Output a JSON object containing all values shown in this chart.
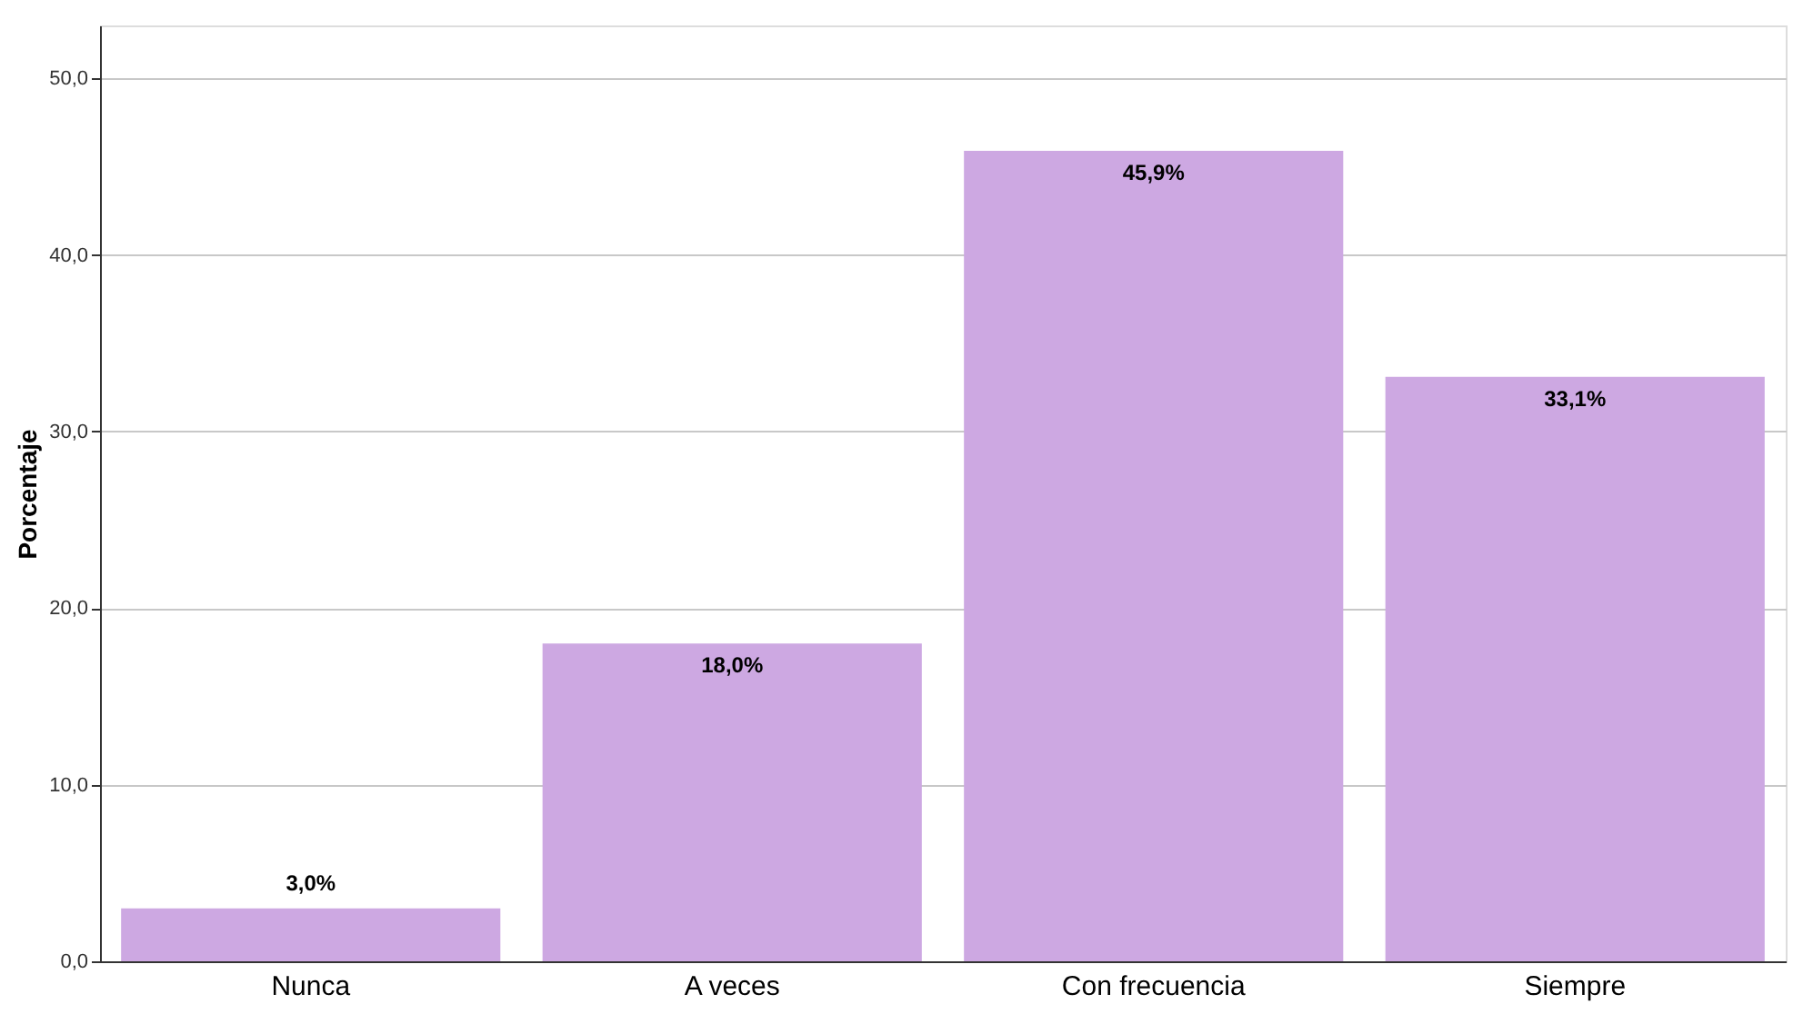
{
  "chart_data": {
    "type": "bar",
    "ylabel": "Porcentaje",
    "categories": [
      "Nunca",
      "A veces",
      "Con frecuencia",
      "Siempre"
    ],
    "values": [
      3.0,
      18.0,
      45.9,
      33.1
    ],
    "color": "#cda8e2",
    "value_labels": [
      "3,0%",
      "18,0%",
      "45,9%",
      "33,1%"
    ],
    "ylim": [
      0,
      53
    ],
    "yticks": [
      {
        "value": 0,
        "label": "0,0"
      },
      {
        "value": 10,
        "label": "10,0"
      },
      {
        "value": 20,
        "label": "20,0"
      },
      {
        "value": 30,
        "label": "30,0"
      },
      {
        "value": 40,
        "label": "40,0"
      },
      {
        "value": 50,
        "label": "50,0"
      }
    ],
    "grid": "y"
  }
}
